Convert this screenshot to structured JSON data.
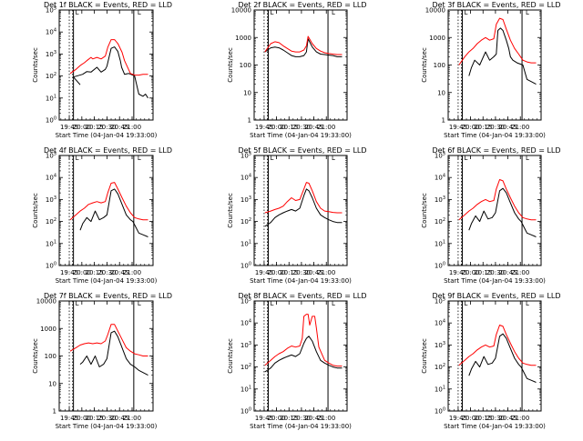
{
  "figure": {
    "xtitle": "Start Time (04-Jan-04 19:33:00)",
    "ylabel": "Counts/sec",
    "xticks": [
      "19:45",
      "20:00",
      "20:15",
      "20:30",
      "20:45",
      "21:00"
    ],
    "marker": "L",
    "colors": {
      "events": "#000000",
      "lld": "#ff0000"
    }
  },
  "chart_data": [
    {
      "type": "line",
      "title": "Det 1f BLACK = Events, RED = LLD",
      "ylabel": "Counts/sec",
      "xlabel": "Start Time (04-Jan-04 19:33:00)",
      "y_scale": "log",
      "ylim": [
        1,
        100000
      ],
      "yticks": [
        "10^0",
        "10^1",
        "10^2",
        "10^3",
        "10^4",
        "10^5"
      ],
      "series": [
        {
          "name": "Events",
          "x_min": [
            25,
            17,
            28,
            33,
            38,
            45,
            50,
            55,
            57,
            62,
            66,
            70,
            73,
            74.5,
            78,
            83,
            88,
            90,
            95,
            100,
            103,
            106
          ],
          "y": [
            40,
            90,
            120,
            160,
            150,
            250,
            150,
            200,
            280,
            1800,
            2100,
            1300,
            500,
            250,
            120,
            130,
            110,
            100,
            15,
            12,
            15,
            10
          ]
        },
        {
          "name": "LLD",
          "x_min": [
            13,
            20,
            25,
            30,
            33,
            38,
            40,
            45,
            50,
            55,
            58,
            62,
            66,
            70,
            75,
            78,
            85,
            90,
            95,
            100,
            106
          ],
          "y": [
            130,
            200,
            300,
            400,
            500,
            700,
            600,
            700,
            600,
            800,
            2000,
            4500,
            4500,
            3000,
            1200,
            500,
            130,
            110,
            110,
            120,
            120
          ]
        }
      ]
    },
    {
      "type": "line",
      "title": "Det 2f BLACK = Events, RED = LLD",
      "ylabel": "Counts/sec",
      "xlabel": "Start Time (04-Jan-04 19:33:00)",
      "y_scale": "log",
      "ylim": [
        1,
        10000
      ],
      "yticks": [
        "1",
        "10",
        "100",
        "1000",
        "10000"
      ],
      "series": [
        {
          "name": "Events",
          "x_min": [
            13,
            20,
            25,
            30,
            35,
            40,
            45,
            50,
            55,
            60,
            63,
            65,
            70,
            75,
            80,
            85,
            90,
            95,
            100,
            106
          ],
          "y": [
            300,
            420,
            450,
            420,
            350,
            280,
            220,
            200,
            200,
            220,
            300,
            900,
            450,
            300,
            250,
            240,
            230,
            220,
            200,
            200
          ]
        },
        {
          "name": "LLD",
          "x_min": [
            13,
            20,
            25,
            30,
            35,
            40,
            45,
            50,
            55,
            60,
            63,
            65,
            70,
            75,
            80,
            85,
            90,
            95,
            100,
            106
          ],
          "y": [
            300,
            600,
            700,
            650,
            500,
            400,
            320,
            300,
            300,
            350,
            500,
            1100,
            600,
            400,
            320,
            280,
            260,
            250,
            240,
            240
          ]
        }
      ]
    },
    {
      "type": "line",
      "title": "Det 3f BLACK = Events, RED = LLD",
      "ylabel": "Counts/sec",
      "xlabel": "Start Time (04-Jan-04 19:33:00)",
      "y_scale": "log",
      "ylim": [
        1,
        10000
      ],
      "yticks": [
        "1",
        "10",
        "100",
        "1000",
        "10000"
      ],
      "series": [
        {
          "name": "Events",
          "x_min": [
            25,
            28,
            32,
            38,
            45,
            50,
            55,
            58,
            60,
            63,
            66,
            70,
            73,
            75,
            78,
            83,
            90,
            95,
            100,
            106
          ],
          "y": [
            40,
            80,
            150,
            100,
            300,
            150,
            200,
            250,
            1800,
            2200,
            1800,
            800,
            400,
            200,
            150,
            120,
            100,
            30,
            25,
            20
          ]
        },
        {
          "name": "LLD",
          "x_min": [
            13,
            20,
            25,
            30,
            35,
            40,
            45,
            50,
            55,
            58,
            62,
            66,
            70,
            75,
            80,
            85,
            90,
            95,
            100,
            106
          ],
          "y": [
            100,
            200,
            300,
            400,
            600,
            800,
            1000,
            800,
            900,
            3000,
            5000,
            4500,
            2000,
            800,
            400,
            250,
            150,
            130,
            120,
            120
          ]
        }
      ]
    },
    {
      "type": "line",
      "title": "Det 4f BLACK = Events, RED = LLD",
      "ylabel": "Counts/sec",
      "xlabel": "Start Time (04-Jan-04 19:33:00)",
      "y_scale": "log",
      "ylim": [
        1,
        100000
      ],
      "yticks": [
        "10^0",
        "10^1",
        "10^2",
        "10^3",
        "10^4",
        "10^5"
      ],
      "series": [
        {
          "name": "Events",
          "x_min": [
            25,
            28,
            33,
            38,
            43,
            48,
            53,
            57,
            62,
            66,
            70,
            75,
            80,
            85,
            88,
            95,
            100,
            106
          ],
          "y": [
            40,
            80,
            150,
            100,
            300,
            120,
            150,
            200,
            2500,
            3000,
            1800,
            600,
            200,
            120,
            100,
            30,
            25,
            20
          ]
        },
        {
          "name": "LLD",
          "x_min": [
            13,
            20,
            25,
            30,
            35,
            40,
            45,
            50,
            55,
            58,
            62,
            66,
            70,
            75,
            80,
            85,
            90,
            95,
            100,
            106
          ],
          "y": [
            120,
            200,
            300,
            400,
            600,
            700,
            800,
            700,
            800,
            2000,
            5500,
            6000,
            3000,
            1200,
            500,
            250,
            150,
            130,
            120,
            120
          ]
        }
      ]
    },
    {
      "type": "line",
      "title": "Det 5f BLACK = Events, RED = LLD",
      "ylabel": "Counts/sec",
      "xlabel": "Start Time (04-Jan-04 19:33:00)",
      "y_scale": "log",
      "ylim": [
        1,
        100000
      ],
      "yticks": [
        "10^0",
        "10^1",
        "10^2",
        "10^3",
        "10^4",
        "10^5"
      ],
      "series": [
        {
          "name": "Events",
          "x_min": [
            13,
            20,
            25,
            30,
            35,
            40,
            45,
            50,
            55,
            60,
            63,
            66,
            70,
            75,
            80,
            85,
            90,
            95,
            100,
            106
          ],
          "y": [
            60,
            90,
            150,
            200,
            250,
            300,
            350,
            300,
            400,
            1500,
            3000,
            2500,
            1200,
            400,
            200,
            150,
            120,
            100,
            90,
            90
          ]
        },
        {
          "name": "LLD",
          "x_min": [
            13,
            20,
            25,
            30,
            35,
            40,
            45,
            50,
            55,
            60,
            63,
            66,
            70,
            75,
            80,
            85,
            90,
            95,
            100,
            106
          ],
          "y": [
            250,
            300,
            350,
            400,
            500,
            800,
            1200,
            900,
            1000,
            3000,
            6000,
            5500,
            2500,
            800,
            400,
            300,
            280,
            260,
            250,
            250
          ]
        }
      ]
    },
    {
      "type": "line",
      "title": "Det 6f BLACK = Events, RED = LLD",
      "ylabel": "Counts/sec",
      "xlabel": "Start Time (04-Jan-04 19:33:00)",
      "y_scale": "log",
      "ylim": [
        1,
        100000
      ],
      "yticks": [
        "10^0",
        "10^1",
        "10^2",
        "10^3",
        "10^4",
        "10^5"
      ],
      "series": [
        {
          "name": "Events",
          "x_min": [
            25,
            28,
            33,
            38,
            43,
            48,
            53,
            57,
            62,
            66,
            70,
            75,
            80,
            85,
            88,
            95,
            100,
            106
          ],
          "y": [
            40,
            80,
            180,
            100,
            300,
            130,
            150,
            250,
            2500,
            3200,
            2000,
            700,
            250,
            130,
            100,
            30,
            25,
            20
          ]
        },
        {
          "name": "LLD",
          "x_min": [
            13,
            20,
            25,
            30,
            35,
            40,
            45,
            50,
            55,
            58,
            62,
            66,
            70,
            75,
            80,
            85,
            90,
            95,
            100,
            106
          ],
          "y": [
            120,
            200,
            300,
            400,
            600,
            800,
            1000,
            800,
            900,
            3000,
            8000,
            7000,
            3000,
            1200,
            500,
            250,
            150,
            130,
            120,
            120
          ]
        }
      ]
    },
    {
      "type": "line",
      "title": "Det 7f BLACK = Events, RED = LLD",
      "ylabel": "Counts/sec",
      "xlabel": "Start Time (04-Jan-04 19:33:00)",
      "y_scale": "log",
      "ylim": [
        1,
        10000
      ],
      "yticks": [
        "1",
        "10",
        "100",
        "1000",
        "10000"
      ],
      "series": [
        {
          "name": "Events",
          "x_min": [
            25,
            28,
            33,
            38,
            43,
            48,
            53,
            57,
            62,
            66,
            70,
            75,
            80,
            85,
            90,
            95,
            100,
            106
          ],
          "y": [
            50,
            60,
            100,
            50,
            100,
            40,
            50,
            80,
            700,
            800,
            500,
            200,
            80,
            50,
            40,
            30,
            25,
            20
          ]
        },
        {
          "name": "LLD",
          "x_min": [
            13,
            20,
            25,
            30,
            35,
            40,
            45,
            50,
            55,
            58,
            62,
            66,
            70,
            75,
            80,
            85,
            90,
            95,
            100,
            106
          ],
          "y": [
            150,
            200,
            250,
            280,
            300,
            280,
            300,
            280,
            350,
            600,
            1400,
            1400,
            800,
            400,
            200,
            150,
            120,
            110,
            100,
            100
          ]
        }
      ]
    },
    {
      "type": "line",
      "title": "Det 8f BLACK = Events, RED = LLD",
      "ylabel": "Counts/sec",
      "xlabel": "Start Time (04-Jan-04 19:33:00)",
      "y_scale": "log",
      "ylim": [
        1,
        100000
      ],
      "yticks": [
        "10^0",
        "10^1",
        "10^2",
        "10^3",
        "10^4",
        "10^5"
      ],
      "series": [
        {
          "name": "Events",
          "x_min": [
            13,
            20,
            25,
            30,
            35,
            40,
            45,
            50,
            55,
            60,
            63,
            66,
            70,
            75,
            80,
            85,
            90,
            95,
            100,
            106
          ],
          "y": [
            60,
            90,
            150,
            200,
            250,
            300,
            350,
            300,
            400,
            1200,
            2000,
            2500,
            1500,
            500,
            200,
            150,
            120,
            100,
            90,
            90
          ]
        },
        {
          "name": "LLD",
          "x_min": [
            13,
            20,
            25,
            30,
            35,
            40,
            45,
            50,
            55,
            58,
            60,
            63,
            65,
            67,
            70,
            73,
            75,
            78,
            85,
            90,
            95,
            100,
            106
          ],
          "y": [
            120,
            200,
            300,
            400,
            500,
            700,
            900,
            800,
            900,
            2000,
            20000,
            25000,
            25000,
            8000,
            20000,
            20000,
            6000,
            800,
            200,
            150,
            120,
            110,
            110
          ]
        }
      ]
    },
    {
      "type": "line",
      "title": "Det 9f BLACK = Events, RED = LLD",
      "ylabel": "Counts/sec",
      "xlabel": "Start Time (04-Jan-04 19:33:00)",
      "y_scale": "log",
      "ylim": [
        1,
        100000
      ],
      "yticks": [
        "10^0",
        "10^1",
        "10^2",
        "10^3",
        "10^4",
        "10^5"
      ],
      "series": [
        {
          "name": "Events",
          "x_min": [
            25,
            28,
            33,
            38,
            43,
            48,
            53,
            57,
            62,
            66,
            70,
            75,
            80,
            85,
            88,
            95,
            100,
            106
          ],
          "y": [
            40,
            80,
            180,
            100,
            300,
            130,
            150,
            250,
            2500,
            3200,
            2000,
            700,
            250,
            130,
            100,
            30,
            25,
            20
          ]
        },
        {
          "name": "LLD",
          "x_min": [
            13,
            20,
            25,
            30,
            35,
            40,
            45,
            50,
            55,
            58,
            62,
            66,
            70,
            75,
            80,
            85,
            90,
            95,
            100,
            106
          ],
          "y": [
            120,
            200,
            300,
            400,
            600,
            800,
            1000,
            800,
            900,
            3000,
            8000,
            7000,
            3000,
            1200,
            500,
            250,
            150,
            130,
            120,
            120
          ]
        }
      ]
    }
  ]
}
